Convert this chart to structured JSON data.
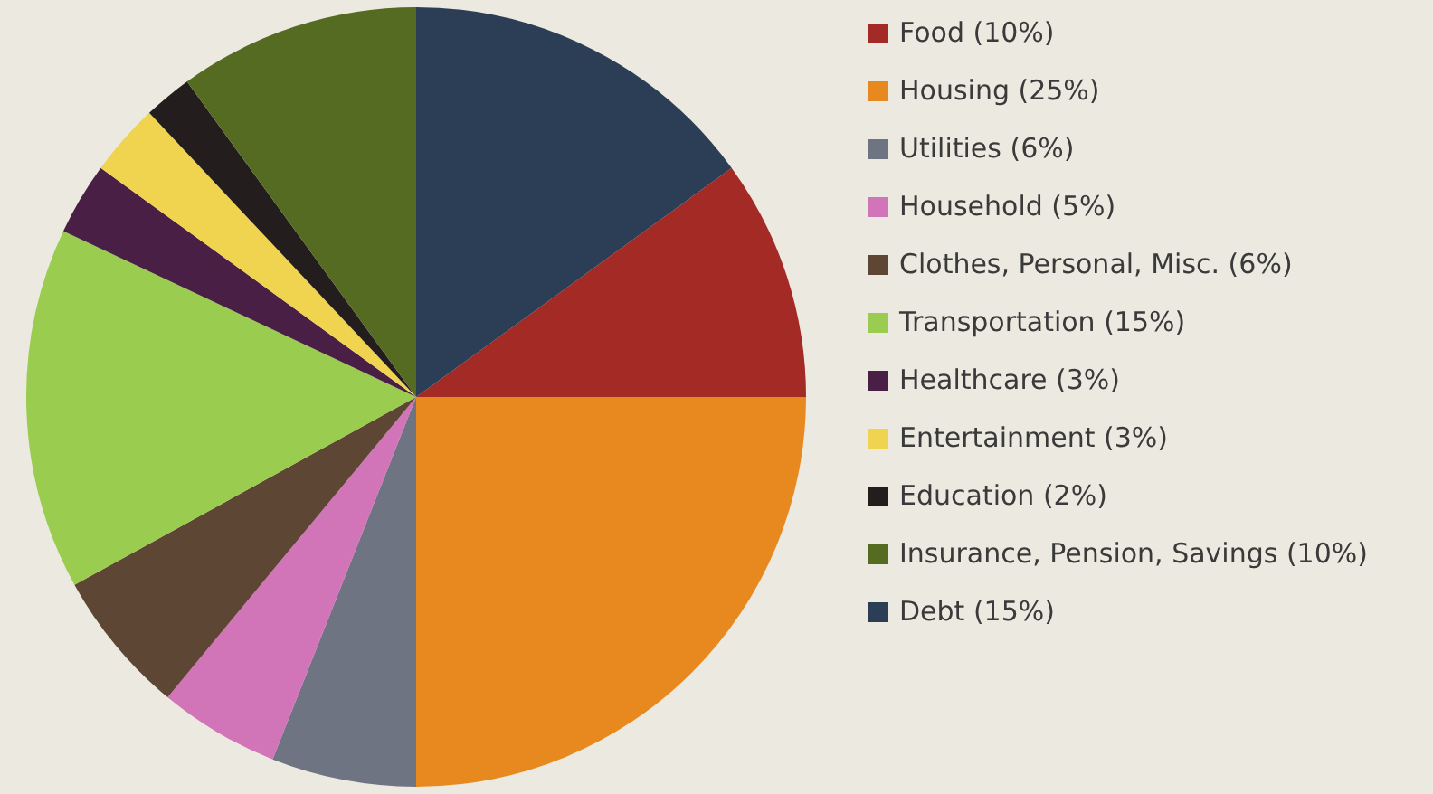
{
  "chart_data": {
    "type": "pie",
    "categories": [
      "Food (10%)",
      "Housing (25%)",
      "Utilities (6%)",
      "Household (5%)",
      "Clothes, Personal, Misc. (6%)",
      "Transportation (15%)",
      "Healthcare (3%)",
      "Entertainment (3%)",
      "Education (2%)",
      "Insurance, Pension, Savings (10%)",
      "Debt (15%)"
    ],
    "values": [
      10,
      25,
      6,
      5,
      6,
      15,
      3,
      3,
      2,
      10,
      15
    ],
    "colors": [
      "#a32a25",
      "#e8891f",
      "#6e7481",
      "#d274b8",
      "#5e4634",
      "#9acd4f",
      "#4a1f45",
      "#f0d34e",
      "#231d1e",
      "#556b22",
      "#2c3e55"
    ],
    "legend": "right"
  }
}
